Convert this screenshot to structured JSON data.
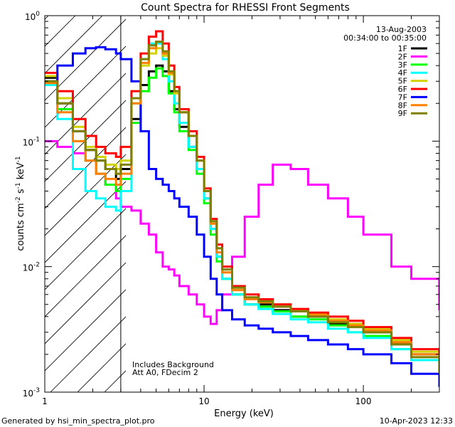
{
  "chart_data": {
    "type": "line",
    "title": "Count Spectra for RHESSI Front Segments",
    "xlabel": "Energy (keV)",
    "ylabel_main": "counts cm",
    "ylabel_sup1": "-2",
    "ylabel_mid": " s",
    "ylabel_sup2": "-1",
    "ylabel_end": " keV",
    "ylabel_sup3": "-1",
    "xscale": "log",
    "yscale": "log",
    "xlim": [
      1,
      300
    ],
    "ylim": [
      0.001,
      1
    ],
    "x_ticks": [
      {
        "v": 1,
        "label": "1"
      },
      {
        "v": 10,
        "label": "10"
      },
      {
        "v": 100,
        "label": "100"
      }
    ],
    "y_ticks": [
      {
        "v": 1,
        "base": "10",
        "exp": "0"
      },
      {
        "v": 0.1,
        "base": "10",
        "exp": "-1"
      },
      {
        "v": 0.01,
        "base": "10",
        "exp": "-2"
      },
      {
        "v": 0.001,
        "base": "10",
        "exp": "-3"
      }
    ],
    "date": "13-Aug-2003",
    "time_range": "00:34:00 to 00:35:00",
    "annotation_lines": [
      "Includes Background",
      "Att A0, FDecim 2"
    ],
    "shaded_region_xmax": 3,
    "series": [
      {
        "name": "1F",
        "color": "#000000",
        "x": [
          1.0,
          1.2,
          1.5,
          1.8,
          2.1,
          2.4,
          2.8,
          3.0,
          3.5,
          4.0,
          4.5,
          5.0,
          5.5,
          6.0,
          6.5,
          7.0,
          8.0,
          9.0,
          10.0,
          11.0,
          12.0,
          13.0,
          15.0,
          18.0,
          22.0,
          27.0,
          35.0,
          45.0,
          60.0,
          80.0,
          100.0,
          150.0,
          200.0,
          300.0
        ],
        "y": [
          0.32,
          0.2,
          0.12,
          0.085,
          0.07,
          0.06,
          0.05,
          0.06,
          0.15,
          0.28,
          0.36,
          0.4,
          0.36,
          0.25,
          0.18,
          0.13,
          0.09,
          0.06,
          0.035,
          0.02,
          0.012,
          0.008,
          0.006,
          0.005,
          0.005,
          0.0045,
          0.004,
          0.004,
          0.0035,
          0.0035,
          0.003,
          0.0025,
          0.002,
          0.0015
        ]
      },
      {
        "name": "2F",
        "color": "#ff00ff",
        "x": [
          1.0,
          1.2,
          1.5,
          1.8,
          2.1,
          2.4,
          2.8,
          3.0,
          3.5,
          4.0,
          4.5,
          5.0,
          5.5,
          6.0,
          6.5,
          7.0,
          8.0,
          9.0,
          10.0,
          11.0,
          12.0,
          13.0,
          15.0,
          18.0,
          22.0,
          27.0,
          35.0,
          45.0,
          60.0,
          80.0,
          100.0,
          150.0,
          200.0,
          300.0
        ],
        "y": [
          0.1,
          0.09,
          0.08,
          0.07,
          0.055,
          0.045,
          0.035,
          0.03,
          0.028,
          0.022,
          0.018,
          0.013,
          0.01,
          0.0095,
          0.0085,
          0.007,
          0.006,
          0.005,
          0.004,
          0.0035,
          0.0045,
          0.006,
          0.012,
          0.025,
          0.045,
          0.065,
          0.06,
          0.045,
          0.035,
          0.025,
          0.018,
          0.01,
          0.008,
          0.0045
        ]
      },
      {
        "name": "3F",
        "color": "#00ff00",
        "x": [
          1.0,
          1.2,
          1.5,
          1.8,
          2.1,
          2.4,
          2.8,
          3.0,
          3.5,
          4.0,
          4.5,
          5.0,
          5.5,
          6.0,
          6.5,
          7.0,
          8.0,
          9.0,
          10.0,
          11.0,
          12.0,
          13.0,
          15.0,
          18.0,
          22.0,
          27.0,
          35.0,
          45.0,
          60.0,
          80.0,
          100.0,
          150.0,
          200.0,
          300.0
        ],
        "y": [
          0.3,
          0.18,
          0.1,
          0.07,
          0.055,
          0.045,
          0.04,
          0.05,
          0.14,
          0.25,
          0.32,
          0.38,
          0.33,
          0.24,
          0.17,
          0.12,
          0.085,
          0.055,
          0.032,
          0.018,
          0.011,
          0.008,
          0.006,
          0.005,
          0.0048,
          0.0044,
          0.004,
          0.0038,
          0.0034,
          0.003,
          0.0028,
          0.0022,
          0.0018,
          0.0013
        ]
      },
      {
        "name": "4F",
        "color": "#00ffff",
        "x": [
          1.0,
          1.2,
          1.5,
          1.8,
          2.1,
          2.4,
          2.8,
          3.0,
          3.5,
          4.0,
          4.5,
          5.0,
          5.5,
          6.0,
          6.5,
          7.0,
          8.0,
          9.0,
          10.0,
          11.0,
          12.0,
          13.0,
          15.0,
          18.0,
          22.0,
          27.0,
          35.0,
          45.0,
          60.0,
          80.0,
          100.0,
          150.0,
          200.0,
          300.0
        ],
        "y": [
          0.28,
          0.15,
          0.06,
          0.04,
          0.035,
          0.03,
          0.028,
          0.04,
          0.2,
          0.45,
          0.6,
          0.6,
          0.45,
          0.3,
          0.2,
          0.14,
          0.09,
          0.06,
          0.035,
          0.02,
          0.012,
          0.008,
          0.006,
          0.005,
          0.0046,
          0.0042,
          0.0038,
          0.0036,
          0.0032,
          0.003,
          0.0027,
          0.0022,
          0.0018,
          0.0014
        ]
      },
      {
        "name": "5F",
        "color": "#d2d200",
        "x": [
          1.0,
          1.2,
          1.5,
          1.8,
          2.1,
          2.4,
          2.8,
          3.0,
          3.5,
          4.0,
          4.5,
          5.0,
          5.5,
          6.0,
          6.5,
          7.0,
          8.0,
          9.0,
          10.0,
          11.0,
          12.0,
          13.0,
          15.0,
          18.0,
          22.0,
          27.0,
          35.0,
          45.0,
          60.0,
          80.0,
          100.0,
          150.0,
          200.0,
          300.0
        ],
        "y": [
          0.33,
          0.22,
          0.13,
          0.09,
          0.075,
          0.065,
          0.06,
          0.07,
          0.2,
          0.4,
          0.5,
          0.55,
          0.48,
          0.34,
          0.24,
          0.17,
          0.11,
          0.07,
          0.04,
          0.022,
          0.014,
          0.009,
          0.0065,
          0.0055,
          0.0055,
          0.005,
          0.0045,
          0.0042,
          0.0038,
          0.0035,
          0.0032,
          0.0026,
          0.0021,
          0.0016
        ]
      },
      {
        "name": "6F",
        "color": "#ff0000",
        "x": [
          1.0,
          1.2,
          1.5,
          1.8,
          2.1,
          2.4,
          2.8,
          3.0,
          3.5,
          4.0,
          4.5,
          5.0,
          5.5,
          6.0,
          6.5,
          7.0,
          8.0,
          9.0,
          10.0,
          11.0,
          12.0,
          13.0,
          15.0,
          18.0,
          22.0,
          27.0,
          35.0,
          45.0,
          60.0,
          80.0,
          100.0,
          150.0,
          200.0,
          300.0
        ],
        "y": [
          0.35,
          0.25,
          0.15,
          0.11,
          0.09,
          0.08,
          0.075,
          0.09,
          0.25,
          0.5,
          0.68,
          0.75,
          0.6,
          0.4,
          0.27,
          0.18,
          0.12,
          0.075,
          0.042,
          0.024,
          0.015,
          0.01,
          0.007,
          0.006,
          0.0055,
          0.005,
          0.0046,
          0.0043,
          0.004,
          0.0037,
          0.0033,
          0.0027,
          0.0022,
          0.0017
        ]
      },
      {
        "name": "7F",
        "color": "#0000ff",
        "x": [
          1.0,
          1.2,
          1.5,
          1.8,
          2.1,
          2.4,
          2.8,
          3.0,
          3.5,
          4.0,
          4.5,
          5.0,
          5.5,
          6.0,
          6.5,
          7.0,
          8.0,
          9.0,
          10.0,
          11.0,
          12.0,
          13.0,
          15.0,
          18.0,
          22.0,
          27.0,
          35.0,
          45.0,
          60.0,
          80.0,
          100.0,
          150.0,
          200.0,
          300.0
        ],
        "y": [
          0.3,
          0.4,
          0.5,
          0.55,
          0.56,
          0.54,
          0.5,
          0.45,
          0.3,
          0.12,
          0.06,
          0.05,
          0.045,
          0.04,
          0.035,
          0.03,
          0.025,
          0.018,
          0.012,
          0.008,
          0.006,
          0.0045,
          0.0038,
          0.0034,
          0.0032,
          0.003,
          0.0028,
          0.0026,
          0.0024,
          0.0022,
          0.002,
          0.0017,
          0.0014,
          0.0011
        ]
      },
      {
        "name": "8F",
        "color": "#ff8000",
        "x": [
          1.0,
          1.2,
          1.5,
          1.8,
          2.1,
          2.4,
          2.8,
          3.0,
          3.5,
          4.0,
          4.5,
          5.0,
          5.5,
          6.0,
          6.5,
          7.0,
          8.0,
          9.0,
          10.0,
          11.0,
          12.0,
          13.0,
          15.0,
          18.0,
          22.0,
          27.0,
          35.0,
          45.0,
          60.0,
          80.0,
          100.0,
          150.0,
          200.0,
          300.0
        ],
        "y": [
          0.29,
          0.17,
          0.1,
          0.07,
          0.055,
          0.05,
          0.045,
          0.055,
          0.2,
          0.42,
          0.55,
          0.62,
          0.5,
          0.35,
          0.25,
          0.17,
          0.11,
          0.07,
          0.04,
          0.022,
          0.013,
          0.009,
          0.0065,
          0.0055,
          0.0052,
          0.0048,
          0.0044,
          0.0041,
          0.0037,
          0.0034,
          0.0031,
          0.0025,
          0.002,
          0.0015
        ]
      },
      {
        "name": "9F",
        "color": "#808000",
        "x": [
          1.0,
          1.2,
          1.5,
          1.8,
          2.1,
          2.4,
          2.8,
          3.0,
          3.5,
          4.0,
          4.5,
          5.0,
          5.5,
          6.0,
          6.5,
          7.0,
          8.0,
          9.0,
          10.0,
          11.0,
          12.0,
          13.0,
          15.0,
          18.0,
          22.0,
          27.0,
          35.0,
          45.0,
          60.0,
          80.0,
          100.0,
          150.0,
          200.0,
          300.0
        ],
        "y": [
          0.3,
          0.2,
          0.12,
          0.085,
          0.07,
          0.06,
          0.055,
          0.065,
          0.22,
          0.45,
          0.58,
          0.62,
          0.52,
          0.36,
          0.25,
          0.17,
          0.11,
          0.07,
          0.04,
          0.023,
          0.014,
          0.0095,
          0.0068,
          0.0057,
          0.0053,
          0.0048,
          0.0044,
          0.004,
          0.0036,
          0.0033,
          0.003,
          0.0024,
          0.0019,
          0.0014
        ]
      }
    ]
  },
  "footer": {
    "generated_by": "Generated by hsi_min_spectra_plot.pro",
    "date_stamp": "10-Apr-2023 12:33"
  }
}
